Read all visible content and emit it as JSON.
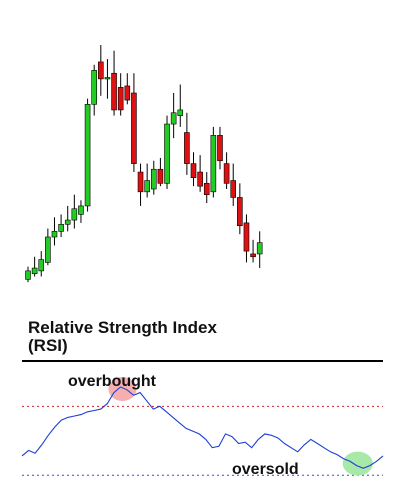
{
  "colors": {
    "bullish": "#22cc22",
    "bearish": "#dd1111",
    "wick": "#000000",
    "rsi_line": "#1f3fd6",
    "overbought_line": "#cc2222",
    "oversold_line": "#3355cc",
    "overbought_marker": "#f4a6a6",
    "oversold_marker": "#9ee69e",
    "divider": "#000000"
  },
  "chart_data": [
    {
      "type": "candlestick",
      "title": "",
      "candles": [
        {
          "o": 4.0,
          "h": 13.0,
          "l": 2.0,
          "c": 10.0
        },
        {
          "o": 8.0,
          "h": 20.0,
          "l": 6.0,
          "c": 12.0
        },
        {
          "o": 10.0,
          "h": 24.0,
          "l": 6.0,
          "c": 18.0
        },
        {
          "o": 16.0,
          "h": 40.0,
          "l": 14.0,
          "c": 34.0
        },
        {
          "o": 34.0,
          "h": 48.0,
          "l": 28.0,
          "c": 38.0
        },
        {
          "o": 38.0,
          "h": 50.0,
          "l": 34.0,
          "c": 43.0
        },
        {
          "o": 43.0,
          "h": 56.0,
          "l": 38.0,
          "c": 46.0
        },
        {
          "o": 46.0,
          "h": 64.0,
          "l": 40.0,
          "c": 54.0
        },
        {
          "o": 50.0,
          "h": 60.0,
          "l": 44.0,
          "c": 56.0
        },
        {
          "o": 56.0,
          "h": 132.0,
          "l": 52.0,
          "c": 128.0
        },
        {
          "o": 128.0,
          "h": 156.0,
          "l": 120.0,
          "c": 152.0
        },
        {
          "o": 158.0,
          "h": 170.0,
          "l": 134.0,
          "c": 146.0
        },
        {
          "o": 147.0,
          "h": 160.0,
          "l": 132.0,
          "c": 147.0
        },
        {
          "o": 150.0,
          "h": 166.0,
          "l": 120.0,
          "c": 124.0
        },
        {
          "o": 140.0,
          "h": 150.0,
          "l": 120.0,
          "c": 124.0
        },
        {
          "o": 141.0,
          "h": 150.0,
          "l": 128.0,
          "c": 131.0
        },
        {
          "o": 136.0,
          "h": 150.0,
          "l": 80.0,
          "c": 86.0
        },
        {
          "o": 80.0,
          "h": 86.0,
          "l": 56.0,
          "c": 66.0
        },
        {
          "o": 66.0,
          "h": 86.0,
          "l": 62.0,
          "c": 74.0
        },
        {
          "o": 68.0,
          "h": 88.0,
          "l": 64.0,
          "c": 82.0
        },
        {
          "o": 82.0,
          "h": 90.0,
          "l": 70.0,
          "c": 72.0
        },
        {
          "o": 72.0,
          "h": 120.0,
          "l": 68.0,
          "c": 114.0
        },
        {
          "o": 114.0,
          "h": 136.0,
          "l": 104.0,
          "c": 122.0
        },
        {
          "o": 120.0,
          "h": 142.0,
          "l": 112.0,
          "c": 124.0
        },
        {
          "o": 108.0,
          "h": 122.0,
          "l": 78.0,
          "c": 86.0
        },
        {
          "o": 86.0,
          "h": 94.0,
          "l": 70.0,
          "c": 76.0
        },
        {
          "o": 80.0,
          "h": 92.0,
          "l": 66.0,
          "c": 70.0
        },
        {
          "o": 72.0,
          "h": 80.0,
          "l": 58.0,
          "c": 64.0
        },
        {
          "o": 66.0,
          "h": 112.0,
          "l": 62.0,
          "c": 106.0
        },
        {
          "o": 106.0,
          "h": 112.0,
          "l": 82.0,
          "c": 88.0
        },
        {
          "o": 86.0,
          "h": 94.0,
          "l": 68.0,
          "c": 72.0
        },
        {
          "o": 74.0,
          "h": 86.0,
          "l": 56.0,
          "c": 62.0
        },
        {
          "o": 62.0,
          "h": 72.0,
          "l": 36.0,
          "c": 42.0
        },
        {
          "o": 44.0,
          "h": 50.0,
          "l": 16.0,
          "c": 24.0
        },
        {
          "o": 22.0,
          "h": 32.0,
          "l": 16.0,
          "c": 20.0
        },
        {
          "o": 22.0,
          "h": 38.0,
          "l": 12.0,
          "c": 30.0
        }
      ],
      "ylim": [
        0,
        170
      ]
    },
    {
      "type": "line",
      "title": "Relative Strength Index\n(RSI)",
      "series": [
        {
          "values": [
            34,
            38,
            36,
            42,
            49,
            55,
            60,
            62,
            63,
            64,
            66,
            67,
            68,
            72,
            80,
            84,
            82,
            78,
            80,
            74,
            68,
            70,
            66,
            62,
            58,
            54,
            52,
            50,
            46,
            40,
            41,
            50,
            48,
            43,
            44,
            40,
            46,
            50,
            49,
            47,
            43,
            40,
            37,
            42,
            46,
            43,
            40,
            37,
            35,
            32,
            30,
            27,
            25,
            27,
            30,
            34
          ]
        }
      ],
      "overbought_level": 70,
      "oversold_level": 20,
      "ylim": [
        10,
        100
      ],
      "annotations": [
        {
          "text": "overbought",
          "at_index": 15
        },
        {
          "text": "oversold",
          "at_index": 51
        }
      ]
    }
  ]
}
